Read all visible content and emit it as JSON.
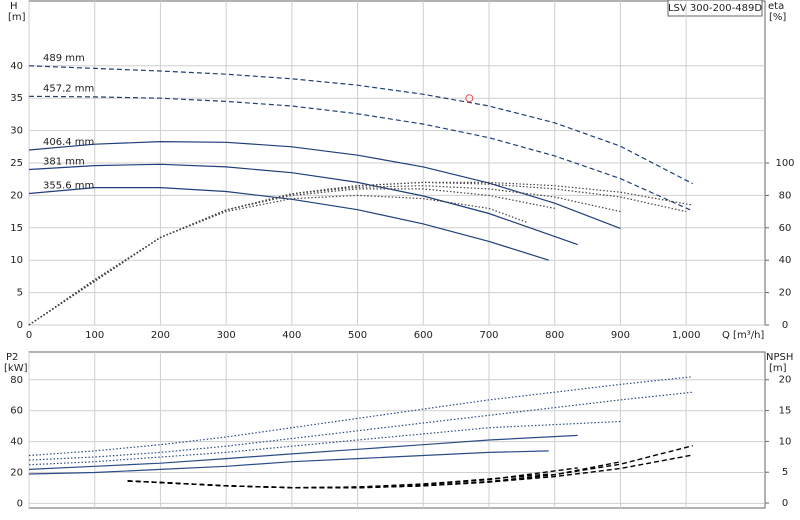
{
  "chart_data": [
    {
      "type": "line",
      "title": "LSV 300-200-489D",
      "y_label": "H",
      "y_unit": "[m]",
      "y2_label": "eta",
      "y2_unit": "[%]",
      "x_label": "Q [m³/h]",
      "xlim": [
        0,
        1120
      ],
      "xticks": [
        0,
        100,
        200,
        300,
        400,
        500,
        600,
        700,
        800,
        900,
        {
          "value": 1000,
          "label": "1,000"
        }
      ],
      "ylim": [
        0,
        50
      ],
      "yticks": [
        0,
        5,
        10,
        15,
        20,
        25,
        30,
        35,
        40
      ],
      "y2lim": [
        0,
        200
      ],
      "y2ticks": [
        0,
        20,
        40,
        60,
        80,
        100
      ],
      "grid": true,
      "series": [
        {
          "name": "489 mm",
          "color": "#1f3f7a",
          "dash": "dashed",
          "x": [
            0,
            100,
            200,
            300,
            400,
            500,
            600,
            700,
            800,
            900,
            1010
          ],
          "values": [
            40,
            39.6,
            39.2,
            38.7,
            38.0,
            37.0,
            35.6,
            33.8,
            31.2,
            27.6,
            21.8
          ]
        },
        {
          "name": "457.2 mm",
          "color": "#1f3f7a",
          "dash": "dashed",
          "x": [
            0,
            100,
            200,
            300,
            400,
            500,
            600,
            700,
            800,
            900,
            1010
          ],
          "values": [
            35.3,
            35.2,
            35.0,
            34.5,
            33.8,
            32.6,
            31.0,
            28.9,
            26.1,
            22.6,
            17.6
          ]
        },
        {
          "name": "406.4 mm",
          "color": "#1f3f7a",
          "dash": "solid",
          "x": [
            0,
            100,
            200,
            300,
            400,
            500,
            600,
            700,
            800,
            900
          ],
          "values": [
            27.0,
            27.9,
            28.3,
            28.2,
            27.5,
            26.2,
            24.4,
            21.9,
            18.8,
            14.9
          ]
        },
        {
          "name": "381 mm",
          "color": "#1f3f7a",
          "dash": "solid",
          "x": [
            0,
            100,
            200,
            300,
            400,
            500,
            600,
            700,
            835
          ],
          "values": [
            24.0,
            24.6,
            24.8,
            24.4,
            23.5,
            22.0,
            19.9,
            17.2,
            12.4
          ]
        },
        {
          "name": "355.6 mm",
          "color": "#1f3f7a",
          "dash": "solid",
          "x": [
            0,
            100,
            200,
            300,
            400,
            500,
            600,
            700,
            791
          ],
          "values": [
            20.3,
            21.2,
            21.2,
            20.6,
            19.4,
            17.8,
            15.6,
            12.9,
            10.0
          ]
        },
        {
          "axis": "y2",
          "color": "#444444",
          "dash": "dotted",
          "x": [
            0,
            100,
            200,
            300,
            400,
            500,
            600,
            700,
            760
          ],
          "values": [
            0,
            28,
            54,
            70,
            78,
            80,
            78,
            72,
            63
          ]
        },
        {
          "axis": "y2",
          "color": "#444444",
          "dash": "dotted",
          "x": [
            0,
            100,
            200,
            300,
            400,
            500,
            600,
            700,
            800
          ],
          "values": [
            0,
            28,
            54,
            71,
            80,
            84,
            84,
            80,
            72
          ]
        },
        {
          "axis": "y2",
          "color": "#444444",
          "dash": "dotted",
          "x": [
            0,
            100,
            200,
            300,
            400,
            500,
            600,
            700,
            800,
            900
          ],
          "values": [
            0,
            27,
            54,
            71,
            81,
            85,
            86,
            84,
            79,
            70
          ]
        },
        {
          "axis": "y2",
          "color": "#444444",
          "dash": "dotted",
          "x": [
            0,
            100,
            200,
            300,
            400,
            500,
            600,
            700,
            800,
            900,
            1000
          ],
          "values": [
            0,
            27,
            54,
            71,
            81,
            86,
            88,
            87,
            84,
            79,
            70
          ]
        },
        {
          "axis": "y2",
          "color": "#444444",
          "dash": "dotted",
          "x": [
            0,
            100,
            200,
            300,
            400,
            500,
            600,
            700,
            800,
            900,
            1010
          ],
          "values": [
            0,
            27,
            54,
            71,
            81,
            86,
            88,
            88,
            86,
            82,
            74
          ]
        }
      ],
      "markers": [
        {
          "x": 670,
          "y": 35,
          "color": "#e05050"
        }
      ]
    },
    {
      "type": "line",
      "y_label": "P2",
      "y_unit": "[kW]",
      "y2_label": "NPSH",
      "y2_unit": "[m]",
      "xlim": [
        0,
        1120
      ],
      "xticks": [
        0,
        100,
        200,
        300,
        400,
        500,
        600,
        700,
        800,
        900,
        1000
      ],
      "ylim": [
        -3,
        98
      ],
      "yticks": [
        0,
        20,
        40,
        60,
        80
      ],
      "y2lim": [
        -0.8,
        24.5
      ],
      "y2ticks": [
        0,
        5,
        10,
        15,
        20
      ],
      "grid": true,
      "series": [
        {
          "color": "#2b4c86",
          "dash": "dotted",
          "x": [
            0,
            100,
            200,
            300,
            400,
            500,
            600,
            700,
            800,
            900,
            1010
          ],
          "values": [
            31,
            34,
            38,
            43,
            49,
            55,
            61,
            67,
            72,
            77,
            82
          ]
        },
        {
          "color": "#2b4c86",
          "dash": "dotted",
          "x": [
            0,
            100,
            200,
            300,
            400,
            500,
            600,
            700,
            800,
            900,
            1010
          ],
          "values": [
            28,
            30,
            33,
            37,
            42,
            47,
            52,
            57,
            62,
            67,
            72
          ]
        },
        {
          "color": "#2b4c86",
          "dash": "dotted",
          "x": [
            0,
            100,
            200,
            300,
            400,
            500,
            600,
            700,
            800,
            900
          ],
          "values": [
            25,
            27,
            30,
            33,
            37,
            41,
            45,
            49,
            51,
            53
          ]
        },
        {
          "color": "#2b4c86",
          "dash": "solid",
          "x": [
            0,
            100,
            200,
            300,
            400,
            500,
            600,
            700,
            835
          ],
          "values": [
            22,
            24,
            26,
            29,
            32,
            35,
            38,
            41,
            44
          ]
        },
        {
          "color": "#2b4c86",
          "dash": "solid",
          "x": [
            0,
            100,
            200,
            300,
            400,
            500,
            600,
            700,
            791
          ],
          "values": [
            19,
            20,
            22,
            24,
            27,
            29,
            31,
            33,
            34
          ]
        },
        {
          "axis": "y2",
          "color": "#000000",
          "dash": "dashed",
          "x": [
            150,
            300,
            400,
            500,
            600,
            700,
            800,
            900,
            1010
          ],
          "values": [
            3.6,
            2.8,
            2.5,
            2.5,
            2.8,
            3.5,
            4.6,
            6.3,
            9.3
          ]
        },
        {
          "axis": "y2",
          "color": "#000000",
          "dash": "dashed",
          "x": [
            150,
            300,
            400,
            500,
            600,
            700,
            800,
            900,
            1010
          ],
          "values": [
            3.6,
            2.8,
            2.5,
            2.5,
            2.8,
            3.4,
            4.3,
            5.6,
            7.8
          ]
        },
        {
          "axis": "y2",
          "color": "#000000",
          "dash": "dashed",
          "x": [
            150,
            300,
            400,
            500,
            600,
            700,
            800,
            900
          ],
          "values": [
            3.6,
            2.8,
            2.5,
            2.5,
            2.8,
            3.4,
            4.6,
            6.7
          ]
        },
        {
          "axis": "y2",
          "color": "#000000",
          "dash": "dashed",
          "x": [
            150,
            300,
            400,
            500,
            600,
            700,
            835
          ],
          "values": [
            3.6,
            2.8,
            2.5,
            2.6,
            3.0,
            3.8,
            5.7
          ]
        },
        {
          "axis": "y2",
          "color": "#000000",
          "dash": "dashed",
          "x": [
            150,
            300,
            400,
            500,
            600,
            700,
            791
          ],
          "values": [
            3.6,
            2.8,
            2.5,
            2.6,
            3.1,
            3.9,
            4.7
          ]
        }
      ]
    }
  ]
}
